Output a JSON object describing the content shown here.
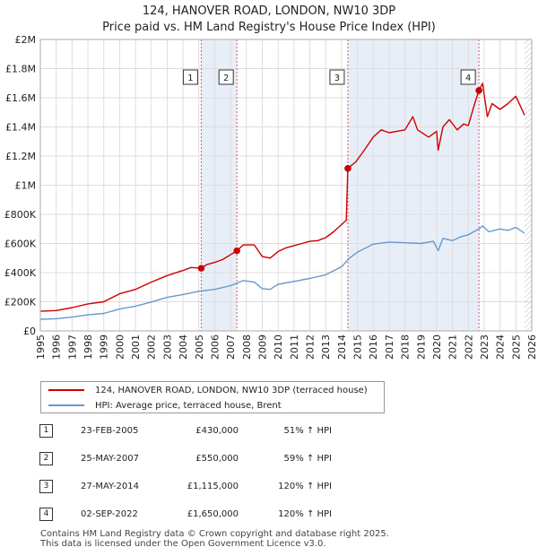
{
  "title_line1": "124, HANOVER ROAD, LONDON, NW10 3DP",
  "title_line2": "Price paid vs. HM Land Registry's House Price Index (HPI)",
  "colors": {
    "property": "#cc0000",
    "hpi": "#6699cc",
    "shade": "#e8eef8",
    "grid": "#dddddd",
    "marker_line": "#e05a5a"
  },
  "chart_data": {
    "type": "line",
    "title": "124, HANOVER ROAD, LONDON, NW10 3DP — Price paid vs. HM Land Registry's House Price Index (HPI)",
    "xlim": [
      1995,
      2026
    ],
    "ylim": [
      0,
      2000000
    ],
    "x_ticks": [
      "1995",
      "1996",
      "1997",
      "1998",
      "1999",
      "2000",
      "2001",
      "2002",
      "2003",
      "2004",
      "2005",
      "2006",
      "2007",
      "2008",
      "2009",
      "2010",
      "2011",
      "2012",
      "2013",
      "2014",
      "2015",
      "2016",
      "2017",
      "2018",
      "2019",
      "2020",
      "2021",
      "2022",
      "2023",
      "2024",
      "2025",
      "2026"
    ],
    "y_ticks": [
      {
        "value": 0,
        "label": "£0"
      },
      {
        "value": 200000,
        "label": "£200K"
      },
      {
        "value": 400000,
        "label": "£400K"
      },
      {
        "value": 600000,
        "label": "£600K"
      },
      {
        "value": 800000,
        "label": "£800K"
      },
      {
        "value": 1000000,
        "label": "£1M"
      },
      {
        "value": 1200000,
        "label": "£1.2M"
      },
      {
        "value": 1400000,
        "label": "£1.4M"
      },
      {
        "value": 1600000,
        "label": "£1.6M"
      },
      {
        "value": 1800000,
        "label": "£1.8M"
      },
      {
        "value": 2000000,
        "label": "£2M"
      }
    ],
    "series": [
      {
        "name": "124, HANOVER ROAD, LONDON, NW10 3DP (terraced house)",
        "color": "#cc0000",
        "points": [
          [
            1995.0,
            135000
          ],
          [
            1996.0,
            140000
          ],
          [
            1997.0,
            160000
          ],
          [
            1998.0,
            185000
          ],
          [
            1999.0,
            200000
          ],
          [
            2000.0,
            255000
          ],
          [
            2001.0,
            285000
          ],
          [
            2002.0,
            335000
          ],
          [
            2003.0,
            380000
          ],
          [
            2004.0,
            415000
          ],
          [
            2004.5,
            435000
          ],
          [
            2005.15,
            430000
          ],
          [
            2005.5,
            455000
          ],
          [
            2006.0,
            470000
          ],
          [
            2006.5,
            490000
          ],
          [
            2007.4,
            550000
          ],
          [
            2007.8,
            590000
          ],
          [
            2008.5,
            590000
          ],
          [
            2009.0,
            510000
          ],
          [
            2009.5,
            500000
          ],
          [
            2010.0,
            545000
          ],
          [
            2010.5,
            570000
          ],
          [
            2011.0,
            585000
          ],
          [
            2011.5,
            600000
          ],
          [
            2012.0,
            615000
          ],
          [
            2012.5,
            620000
          ],
          [
            2013.0,
            640000
          ],
          [
            2013.5,
            680000
          ],
          [
            2014.0,
            730000
          ],
          [
            2014.3,
            760000
          ],
          [
            2014.4,
            1115000
          ],
          [
            2014.9,
            1160000
          ],
          [
            2015.5,
            1250000
          ],
          [
            2016.0,
            1330000
          ],
          [
            2016.5,
            1380000
          ],
          [
            2017.0,
            1360000
          ],
          [
            2017.5,
            1370000
          ],
          [
            2018.0,
            1380000
          ],
          [
            2018.5,
            1470000
          ],
          [
            2018.8,
            1380000
          ],
          [
            2019.5,
            1330000
          ],
          [
            2020.0,
            1370000
          ],
          [
            2020.1,
            1240000
          ],
          [
            2020.4,
            1400000
          ],
          [
            2020.8,
            1450000
          ],
          [
            2021.3,
            1380000
          ],
          [
            2021.7,
            1420000
          ],
          [
            2022.0,
            1410000
          ],
          [
            2022.4,
            1560000
          ],
          [
            2022.67,
            1650000
          ],
          [
            2022.9,
            1700000
          ],
          [
            2023.2,
            1470000
          ],
          [
            2023.5,
            1560000
          ],
          [
            2024.0,
            1520000
          ],
          [
            2024.5,
            1560000
          ],
          [
            2025.0,
            1610000
          ],
          [
            2025.3,
            1540000
          ],
          [
            2025.55,
            1480000
          ]
        ]
      },
      {
        "name": "HPI: Average price, terraced house, Brent",
        "color": "#6699cc",
        "points": [
          [
            1995.0,
            80000
          ],
          [
            1996.0,
            84000
          ],
          [
            1997.0,
            95000
          ],
          [
            1998.0,
            110000
          ],
          [
            1999.0,
            120000
          ],
          [
            2000.0,
            150000
          ],
          [
            2001.0,
            170000
          ],
          [
            2002.0,
            198000
          ],
          [
            2003.0,
            230000
          ],
          [
            2004.0,
            250000
          ],
          [
            2005.0,
            272000
          ],
          [
            2006.0,
            285000
          ],
          [
            2007.0,
            310000
          ],
          [
            2007.8,
            345000
          ],
          [
            2008.5,
            335000
          ],
          [
            2009.0,
            290000
          ],
          [
            2009.5,
            285000
          ],
          [
            2010.0,
            320000
          ],
          [
            2011.0,
            340000
          ],
          [
            2012.0,
            360000
          ],
          [
            2013.0,
            385000
          ],
          [
            2014.0,
            440000
          ],
          [
            2014.5,
            500000
          ],
          [
            2015.0,
            540000
          ],
          [
            2016.0,
            595000
          ],
          [
            2017.0,
            610000
          ],
          [
            2018.0,
            605000
          ],
          [
            2019.0,
            600000
          ],
          [
            2019.8,
            615000
          ],
          [
            2020.1,
            550000
          ],
          [
            2020.4,
            635000
          ],
          [
            2021.0,
            620000
          ],
          [
            2021.5,
            645000
          ],
          [
            2022.0,
            660000
          ],
          [
            2022.67,
            700000
          ],
          [
            2022.9,
            720000
          ],
          [
            2023.3,
            680000
          ],
          [
            2024.0,
            700000
          ],
          [
            2024.5,
            690000
          ],
          [
            2025.0,
            710000
          ],
          [
            2025.55,
            670000
          ]
        ]
      }
    ],
    "sales": [
      {
        "label": "1",
        "x": 2005.15,
        "price": 430000
      },
      {
        "label": "2",
        "x": 2007.4,
        "price": 550000
      },
      {
        "label": "3",
        "x": 2014.4,
        "price": 1115000
      },
      {
        "label": "4",
        "x": 2022.67,
        "price": 1650000
      }
    ],
    "shaded_ranges": [
      [
        2005.15,
        2007.4
      ],
      [
        2014.4,
        2022.67
      ]
    ],
    "hatch_from": 2025.55
  },
  "legend": {
    "property_label": "124, HANOVER ROAD, LONDON, NW10 3DP (terraced house)",
    "hpi_label": "HPI: Average price, terraced house, Brent"
  },
  "table": [
    {
      "num": "1",
      "date": "23-FEB-2005",
      "price": "£430,000",
      "hpi": "51% ↑ HPI"
    },
    {
      "num": "2",
      "date": "25-MAY-2007",
      "price": "£550,000",
      "hpi": "59% ↑ HPI"
    },
    {
      "num": "3",
      "date": "27-MAY-2014",
      "price": "£1,115,000",
      "hpi": "120% ↑ HPI"
    },
    {
      "num": "4",
      "date": "02-SEP-2022",
      "price": "£1,650,000",
      "hpi": "120% ↑ HPI"
    }
  ],
  "footer_line1": "Contains HM Land Registry data © Crown copyright and database right 2025.",
  "footer_line2": "This data is licensed under the Open Government Licence v3.0."
}
